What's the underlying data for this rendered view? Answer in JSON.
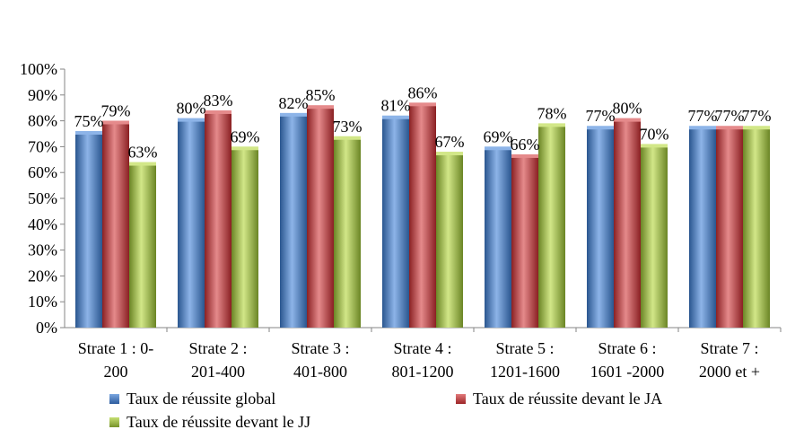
{
  "chart_data": {
    "type": "bar",
    "title": "",
    "xlabel": "",
    "ylabel": "",
    "ylim": [
      0,
      100
    ],
    "yticks": [
      "0%",
      "10%",
      "20%",
      "30%",
      "40%",
      "50%",
      "60%",
      "70%",
      "80%",
      "90%",
      "100%"
    ],
    "categories": [
      [
        "Strate 1 : 0-",
        "200"
      ],
      [
        "Strate 2 :",
        "201-400"
      ],
      [
        "Strate 3 :",
        "401-800"
      ],
      [
        "Strate 4 :",
        "801-1200"
      ],
      [
        "Strate 5 :",
        "1201-1600"
      ],
      [
        "Strate 6 :",
        "1601 -2000"
      ],
      [
        "Strate 7 :",
        "2000 et +"
      ]
    ],
    "series": [
      {
        "name": "Taux de réussite global",
        "color": "#4a7ebf",
        "values": [
          75,
          80,
          82,
          81,
          69,
          77,
          77
        ]
      },
      {
        "name": "Taux de réussite devant le JA",
        "color": "#c0393b",
        "values": [
          79,
          83,
          85,
          86,
          66,
          80,
          77
        ]
      },
      {
        "name": "Taux de réussite devant le JJ",
        "color": "#9bbb3b",
        "values": [
          63,
          69,
          73,
          67,
          78,
          70,
          77
        ]
      }
    ],
    "data_label_suffix": "%",
    "legend_position": "bottom",
    "grid": false
  }
}
